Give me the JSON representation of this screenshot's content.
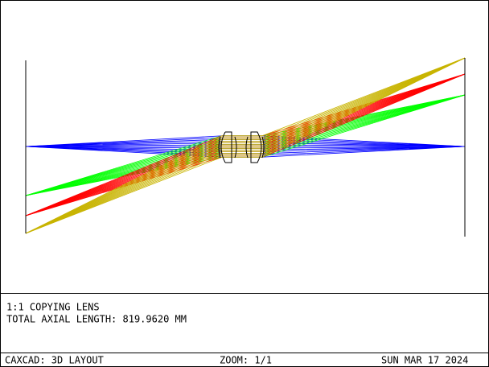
{
  "description": {
    "title": "1:1 COPYING LENS",
    "axial_length": "TOTAL AXIAL LENGTH: 819.9620 MM"
  },
  "status_bar": {
    "program": "CAXCAD: 3D LAYOUT",
    "zoom": "ZOOM: 1/1",
    "date": "SUN MAR 17 2024"
  }
}
